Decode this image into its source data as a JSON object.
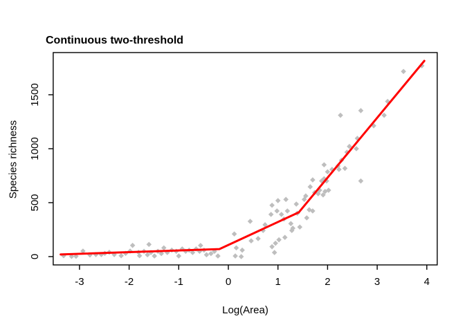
{
  "chart_data": {
    "type": "scatter",
    "title": "Continuous two-threshold",
    "xlabel": "Log(Area)",
    "ylabel": "Species richness",
    "x_ticks": [
      -3,
      -2,
      -1,
      0,
      1,
      2,
      3,
      4
    ],
    "y_ticks": [
      0,
      500,
      1000,
      1500
    ],
    "xlim": [
      -3.53,
      4.21
    ],
    "ylim": [
      -77,
      1891
    ],
    "grid": "off",
    "legend": "none",
    "point_color": "#bebebe",
    "line_color": "#ff0000",
    "box_color": "#000000",
    "fit_line": [
      [
        -3.38,
        20
      ],
      [
        -0.18,
        70
      ],
      [
        1.42,
        410
      ],
      [
        3.95,
        1814
      ]
    ],
    "points": [
      [
        -3.32,
        8
      ],
      [
        -3.16,
        2
      ],
      [
        -3.07,
        3
      ],
      [
        -2.93,
        51
      ],
      [
        -2.79,
        15
      ],
      [
        -2.67,
        19
      ],
      [
        -2.56,
        19
      ],
      [
        -2.49,
        30
      ],
      [
        -2.4,
        40
      ],
      [
        -2.3,
        19
      ],
      [
        -2.16,
        8
      ],
      [
        -2.07,
        30
      ],
      [
        -1.98,
        51
      ],
      [
        -1.93,
        104
      ],
      [
        -1.81,
        40
      ],
      [
        -1.79,
        8
      ],
      [
        -1.7,
        49
      ],
      [
        -1.63,
        17
      ],
      [
        -1.6,
        113
      ],
      [
        -1.56,
        38
      ],
      [
        -1.49,
        6
      ],
      [
        -1.42,
        49
      ],
      [
        -1.35,
        28
      ],
      [
        -1.3,
        81
      ],
      [
        -1.23,
        38
      ],
      [
        -1.14,
        60
      ],
      [
        -1.05,
        49
      ],
      [
        -1.0,
        6
      ],
      [
        -0.93,
        71
      ],
      [
        -0.86,
        49
      ],
      [
        -0.79,
        60
      ],
      [
        -0.72,
        38
      ],
      [
        -0.65,
        71
      ],
      [
        -0.58,
        49
      ],
      [
        -0.56,
        103
      ],
      [
        -0.49,
        60
      ],
      [
        -0.44,
        17
      ],
      [
        -0.35,
        28
      ],
      [
        -0.28,
        49
      ],
      [
        -0.21,
        6
      ],
      [
        0.12,
        210
      ],
      [
        0.14,
        6
      ],
      [
        0.16,
        81
      ],
      [
        0.26,
        0
      ],
      [
        0.28,
        60
      ],
      [
        0.44,
        327
      ],
      [
        0.46,
        146
      ],
      [
        0.6,
        167
      ],
      [
        0.7,
        242
      ],
      [
        0.74,
        295
      ],
      [
        0.86,
        391
      ],
      [
        0.88,
        476
      ],
      [
        0.88,
        92
      ],
      [
        0.93,
        38
      ],
      [
        0.95,
        124
      ],
      [
        0.98,
        423
      ],
      [
        1.0,
        519
      ],
      [
        1.02,
        156
      ],
      [
        1.07,
        391
      ],
      [
        1.12,
        348
      ],
      [
        1.14,
        178
      ],
      [
        1.16,
        530
      ],
      [
        1.19,
        423
      ],
      [
        1.26,
        306
      ],
      [
        1.28,
        242
      ],
      [
        1.3,
        263
      ],
      [
        1.37,
        487
      ],
      [
        1.39,
        402
      ],
      [
        1.44,
        274
      ],
      [
        1.53,
        530
      ],
      [
        1.56,
        562
      ],
      [
        1.58,
        359
      ],
      [
        1.63,
        434
      ],
      [
        1.65,
        647
      ],
      [
        1.7,
        711
      ],
      [
        1.7,
        423
      ],
      [
        1.74,
        594
      ],
      [
        1.81,
        583
      ],
      [
        1.84,
        615
      ],
      [
        1.88,
        701
      ],
      [
        1.91,
        572
      ],
      [
        1.93,
        851
      ],
      [
        1.93,
        722
      ],
      [
        1.95,
        604
      ],
      [
        1.98,
        701
      ],
      [
        2.0,
        786
      ],
      [
        2.02,
        615
      ],
      [
        2.09,
        808
      ],
      [
        2.21,
        840
      ],
      [
        2.23,
        808
      ],
      [
        2.26,
        1310
      ],
      [
        2.28,
        893
      ],
      [
        2.35,
        818
      ],
      [
        2.39,
        968
      ],
      [
        2.44,
        1021
      ],
      [
        2.58,
        1000
      ],
      [
        2.6,
        1096
      ],
      [
        2.67,
        1353
      ],
      [
        2.67,
        701
      ],
      [
        2.93,
        1213
      ],
      [
        3.14,
        1310
      ],
      [
        3.21,
        1438
      ],
      [
        3.53,
        1716
      ],
      [
        3.9,
        1769
      ]
    ]
  }
}
